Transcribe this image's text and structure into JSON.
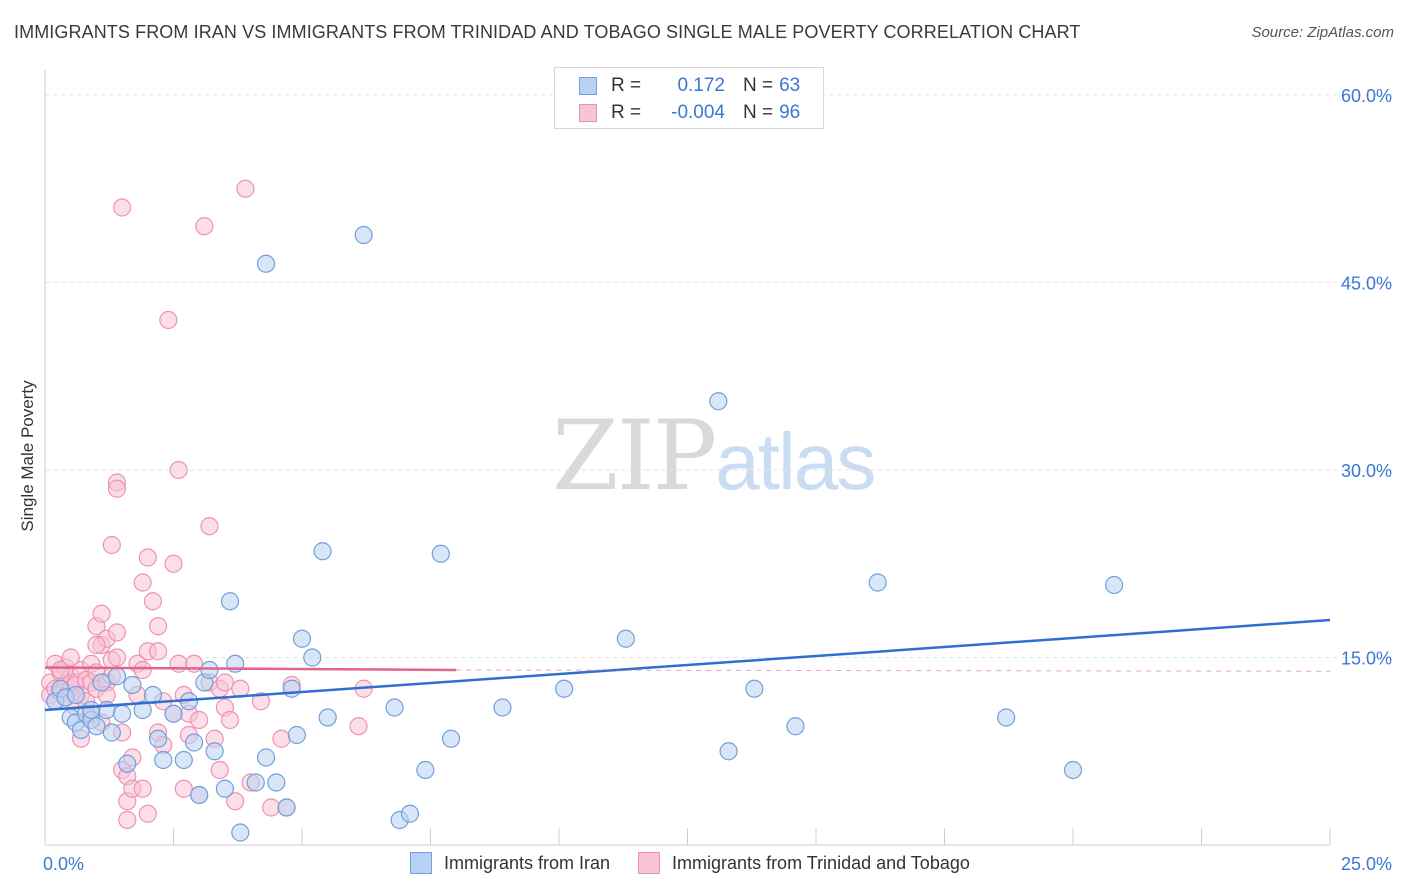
{
  "title": "IMMIGRANTS FROM IRAN VS IMMIGRANTS FROM TRINIDAD AND TOBAGO SINGLE MALE POVERTY CORRELATION CHART",
  "source": "Source: ZipAtlas.com",
  "watermark": {
    "zip": "ZIP",
    "atlas": "atlas"
  },
  "legend_top": [
    {
      "r_label": "R =",
      "r_value": "0.172",
      "n_label": "N =",
      "n_value": "63"
    },
    {
      "r_label": "R =",
      "r_value": "-0.004",
      "n_label": "N =",
      "n_value": "96"
    }
  ],
  "legend_bottom": [
    {
      "label": "Immigrants from Iran"
    },
    {
      "label": "Immigrants from Trinidad and Tobago"
    }
  ],
  "colors": {
    "iran_fill": "#b9d1f3",
    "iran_stroke": "#6f9fdc",
    "iran_line": "#2f6fd0",
    "tt_fill": "#f8c3d5",
    "tt_stroke": "#ee92b2",
    "tt_line": "#e0628e",
    "grid": "#e3e3e3",
    "tick_text": "#3a78d4"
  },
  "chart_data": {
    "type": "scatter",
    "title": "IMMIGRANTS FROM IRAN VS IMMIGRANTS FROM TRINIDAD AND TOBAGO SINGLE MALE POVERTY CORRELATION CHART",
    "xlabel": "",
    "ylabel": "Single Male Poverty",
    "xlim": [
      0,
      25
    ],
    "ylim": [
      0,
      62
    ],
    "x_tick_labels": [
      {
        "value": 0,
        "label": "0.0%"
      },
      {
        "value": 25,
        "label": "25.0%"
      }
    ],
    "y_tick_labels": [
      {
        "value": 15,
        "label": "15.0%"
      },
      {
        "value": 30,
        "label": "30.0%"
      },
      {
        "value": 45,
        "label": "45.0%"
      },
      {
        "value": 60,
        "label": "60.0%"
      }
    ],
    "x_minor_ticks": [
      2.5,
      5,
      7.5,
      10,
      12.5,
      15,
      17.5,
      20,
      22.5,
      25
    ],
    "series": [
      {
        "name": "Immigrants from Iran",
        "r": 0.172,
        "n": 63,
        "trend": {
          "x0": 0,
          "y0": 10.8,
          "x1": 25,
          "y1": 18.0
        },
        "points": [
          [
            0.2,
            11.5
          ],
          [
            0.3,
            12.5
          ],
          [
            0.4,
            11.8
          ],
          [
            0.5,
            10.2
          ],
          [
            0.6,
            12.0
          ],
          [
            0.6,
            9.8
          ],
          [
            0.7,
            9.2
          ],
          [
            0.8,
            10.5
          ],
          [
            0.9,
            10.0
          ],
          [
            1.0,
            9.5
          ],
          [
            1.1,
            13.0
          ],
          [
            1.2,
            10.8
          ],
          [
            1.3,
            9.0
          ],
          [
            1.4,
            13.5
          ],
          [
            1.5,
            10.5
          ],
          [
            1.6,
            6.5
          ],
          [
            1.7,
            12.8
          ],
          [
            1.9,
            10.8
          ],
          [
            2.1,
            12.0
          ],
          [
            2.2,
            8.5
          ],
          [
            2.3,
            6.8
          ],
          [
            2.5,
            10.5
          ],
          [
            2.7,
            6.8
          ],
          [
            2.8,
            11.5
          ],
          [
            2.9,
            8.2
          ],
          [
            3.0,
            4.0
          ],
          [
            3.1,
            13.0
          ],
          [
            3.2,
            14.0
          ],
          [
            3.3,
            7.5
          ],
          [
            3.5,
            4.5
          ],
          [
            3.6,
            19.5
          ],
          [
            3.7,
            14.5
          ],
          [
            3.8,
            1.0
          ],
          [
            4.1,
            5.0
          ],
          [
            4.3,
            7.0
          ],
          [
            4.5,
            5.0
          ],
          [
            4.7,
            3.0
          ],
          [
            4.8,
            12.5
          ],
          [
            4.9,
            8.8
          ],
          [
            5.0,
            16.5
          ],
          [
            5.2,
            15.0
          ],
          [
            5.4,
            23.5
          ],
          [
            5.5,
            10.2
          ],
          [
            6.2,
            48.8
          ],
          [
            6.8,
            11.0
          ],
          [
            6.9,
            2.0
          ],
          [
            7.1,
            2.5
          ],
          [
            7.4,
            6.0
          ],
          [
            7.7,
            23.3
          ],
          [
            7.9,
            8.5
          ],
          [
            8.9,
            11.0
          ],
          [
            10.1,
            12.5
          ],
          [
            11.3,
            16.5
          ],
          [
            13.1,
            35.5
          ],
          [
            13.3,
            7.5
          ],
          [
            13.8,
            12.5
          ],
          [
            14.6,
            9.5
          ],
          [
            16.2,
            21.0
          ],
          [
            18.7,
            10.2
          ],
          [
            20.0,
            6.0
          ],
          [
            20.8,
            20.8
          ],
          [
            4.3,
            46.5
          ],
          [
            0.9,
            10.8
          ]
        ]
      },
      {
        "name": "Immigrants from Trinidad and Tobago",
        "r": -0.004,
        "n": 96,
        "trend": {
          "x0": 0,
          "y0": 14.2,
          "x1": 8.0,
          "y1": 14.0
        },
        "trend_dashed_to": {
          "x": 25,
          "y": 13.9
        },
        "points": [
          [
            0.1,
            13.0
          ],
          [
            0.1,
            12.0
          ],
          [
            0.2,
            14.5
          ],
          [
            0.2,
            12.5
          ],
          [
            0.2,
            11.5
          ],
          [
            0.3,
            13.8
          ],
          [
            0.3,
            12.2
          ],
          [
            0.4,
            13.0
          ],
          [
            0.4,
            11.8
          ],
          [
            0.4,
            14.2
          ],
          [
            0.5,
            12.5
          ],
          [
            0.5,
            13.5
          ],
          [
            0.6,
            13.0
          ],
          [
            0.6,
            11.0
          ],
          [
            0.6,
            12.8
          ],
          [
            0.7,
            14.0
          ],
          [
            0.7,
            12.0
          ],
          [
            0.7,
            8.5
          ],
          [
            0.8,
            13.2
          ],
          [
            0.8,
            11.5
          ],
          [
            0.9,
            14.5
          ],
          [
            0.9,
            10.5
          ],
          [
            0.9,
            13.0
          ],
          [
            1.0,
            12.5
          ],
          [
            1.0,
            17.5
          ],
          [
            1.0,
            13.8
          ],
          [
            1.1,
            18.5
          ],
          [
            1.1,
            16.0
          ],
          [
            1.1,
            9.8
          ],
          [
            1.2,
            16.5
          ],
          [
            1.2,
            13.0
          ],
          [
            1.2,
            12.0
          ],
          [
            1.3,
            24.0
          ],
          [
            1.3,
            14.8
          ],
          [
            1.3,
            13.5
          ],
          [
            1.4,
            29.0
          ],
          [
            1.4,
            28.5
          ],
          [
            1.4,
            17.0
          ],
          [
            1.4,
            15.0
          ],
          [
            1.5,
            9.0
          ],
          [
            1.5,
            6.0
          ],
          [
            1.6,
            5.5
          ],
          [
            1.6,
            3.5
          ],
          [
            1.6,
            2.0
          ],
          [
            1.7,
            7.0
          ],
          [
            1.7,
            4.5
          ],
          [
            1.8,
            12.0
          ],
          [
            1.8,
            14.5
          ],
          [
            1.9,
            21.0
          ],
          [
            1.9,
            14.0
          ],
          [
            1.9,
            4.5
          ],
          [
            2.0,
            23.0
          ],
          [
            2.0,
            15.5
          ],
          [
            2.0,
            2.5
          ],
          [
            2.1,
            19.5
          ],
          [
            2.2,
            15.5
          ],
          [
            2.2,
            9.0
          ],
          [
            2.3,
            11.5
          ],
          [
            2.3,
            8.0
          ],
          [
            2.4,
            42.0
          ],
          [
            2.5,
            22.5
          ],
          [
            2.5,
            10.5
          ],
          [
            2.6,
            30.0
          ],
          [
            2.6,
            14.5
          ],
          [
            2.7,
            12.0
          ],
          [
            2.7,
            4.5
          ],
          [
            2.8,
            10.5
          ],
          [
            2.8,
            8.8
          ],
          [
            2.9,
            14.5
          ],
          [
            3.0,
            10.0
          ],
          [
            3.0,
            4.0
          ],
          [
            3.1,
            49.5
          ],
          [
            3.2,
            25.5
          ],
          [
            3.2,
            13.0
          ],
          [
            3.3,
            8.5
          ],
          [
            3.4,
            12.5
          ],
          [
            3.4,
            6.0
          ],
          [
            3.5,
            13.0
          ],
          [
            3.5,
            11.0
          ],
          [
            3.6,
            10.0
          ],
          [
            3.7,
            3.5
          ],
          [
            3.8,
            12.5
          ],
          [
            3.9,
            52.5
          ],
          [
            4.0,
            5.0
          ],
          [
            4.2,
            11.5
          ],
          [
            4.4,
            3.0
          ],
          [
            4.6,
            8.5
          ],
          [
            4.7,
            3.0
          ],
          [
            4.8,
            12.8
          ],
          [
            6.1,
            9.5
          ],
          [
            6.2,
            12.5
          ],
          [
            0.3,
            14.0
          ],
          [
            0.5,
            15.0
          ],
          [
            1.5,
            51.0
          ],
          [
            1.0,
            16.0
          ],
          [
            2.2,
            17.5
          ]
        ]
      }
    ]
  }
}
